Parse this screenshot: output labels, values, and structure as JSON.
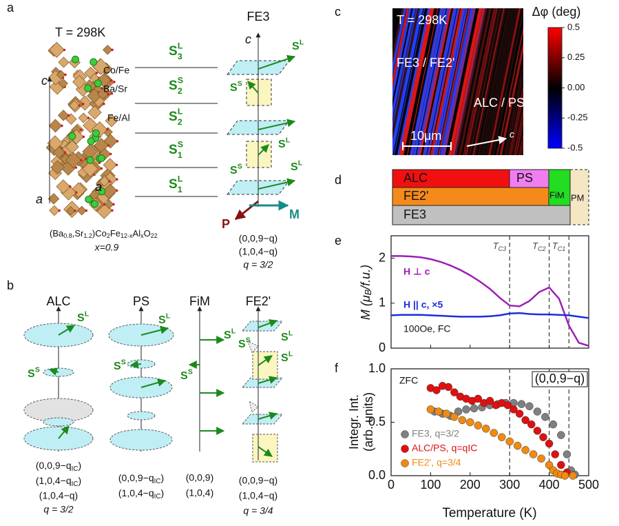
{
  "panels": {
    "a": {
      "label": "a",
      "temperature": "T = 298K",
      "sites": [
        "Co/Fe",
        "Ba/Sr",
        "Fe/Al"
      ],
      "axes": [
        "c",
        "a",
        "a"
      ],
      "formula": [
        {
          "text": "(Ba",
          "sub": "0.8"
        },
        {
          "text": ",Sr",
          "sub": "1.2"
        },
        {
          "text": ")Co",
          "sub": "2"
        },
        {
          "text": "Fe",
          "sub": "12-x"
        },
        {
          "text": "Al",
          "sub": "x"
        },
        {
          "text": "O",
          "sub": "22"
        }
      ],
      "composition": "x=0.9",
      "layers": [
        {
          "base": "S",
          "sup": "L",
          "sub": "3"
        },
        {
          "base": "S",
          "sup": "S",
          "sub": "2"
        },
        {
          "base": "S",
          "sup": "L",
          "sub": "2"
        },
        {
          "base": "S",
          "sup": "S",
          "sub": "1"
        },
        {
          "base": "S",
          "sup": "L",
          "sub": "1"
        }
      ],
      "fe3": {
        "title": "FE3",
        "axis": "c",
        "spins": [
          {
            "base": "S",
            "sup": "L"
          },
          {
            "base": "S",
            "sup": "S"
          },
          {
            "base": "S",
            "sup": "L"
          },
          {
            "base": "S",
            "sup": "S"
          },
          {
            "base": "S",
            "sup": "L"
          }
        ],
        "polarization": "P",
        "magnetization": "M",
        "wavevectors": [
          "(0,0,9−q)",
          "(1,0,4−q)"
        ],
        "q": "q = 3/2"
      }
    },
    "b": {
      "label": "b",
      "columns": [
        {
          "title": "ALC",
          "spins": [
            {
              "base": "S",
              "sup": "L"
            },
            {
              "base": "S",
              "sup": "S"
            }
          ],
          "wavevectors": [
            {
              "main": "(0,0,9−q",
              "sub": "IC",
              "end": ")"
            },
            {
              "main": "(1,0,4−q",
              "sub": "IC",
              "end": ")"
            },
            "(1,0,4−q)"
          ],
          "q": "q = 3/2"
        },
        {
          "title": "PS",
          "spins": [
            {
              "base": "S",
              "sup": "L"
            },
            {
              "base": "S",
              "sup": "S"
            }
          ],
          "wavevectors": [
            {
              "main": "(0,0,9−q",
              "sub": "IC",
              "end": ")"
            },
            {
              "main": "(1,0,4−q",
              "sub": "IC",
              "end": ")"
            }
          ]
        },
        {
          "title": "FiM",
          "spins": [
            {
              "base": "S",
              "sup": "L"
            },
            {
              "base": "S",
              "sup": "S"
            }
          ],
          "wavevectors": [
            "(0,0,9)",
            "(1,0,4)"
          ]
        },
        {
          "title": "FE2'",
          "spins": [
            {
              "base": "S",
              "sup": "S"
            },
            {
              "base": "S",
              "sup": "L"
            },
            {
              "base": "S",
              "sup": "L"
            }
          ],
          "wavevectors": [
            "(0,0,9−q)",
            "(1,0,4−q)"
          ],
          "q": "q = 3/4"
        }
      ]
    },
    "c": {
      "label": "c",
      "temperature": "T = 298K",
      "regions": [
        "FE3 / FE2'",
        "ALC / PS"
      ],
      "scale_bar": "10μm",
      "axis": "c",
      "colorbar": {
        "title": "Δφ (deg)",
        "lim": [
          -0.5,
          0.5
        ],
        "ticks": [
          0.5,
          0.25,
          {
            "value": 0,
            "label": "0.00"
          },
          -0.25,
          -0.5
        ]
      }
    },
    "d": {
      "label": "d",
      "phases": [
        "ALC",
        "PS",
        "FiM",
        "FE2'",
        "FE3",
        "PM"
      ]
    }
  },
  "chart_data": [
    {
      "type": "line",
      "panel_label": "e",
      "ylabel": {
        "main": "M (μ",
        "sub": "B",
        "end": "/f.u.)"
      },
      "xlim": [
        0,
        500
      ],
      "ylim": [
        0,
        2.5
      ],
      "xticks": [
        0,
        100,
        200,
        300,
        400,
        500
      ],
      "yticks": [
        0,
        1,
        2
      ],
      "transitions": [
        {
          "value": 300,
          "label": "T",
          "sub": "C3"
        },
        {
          "value": 400,
          "label": "T",
          "sub": "C2"
        },
        {
          "value": 450,
          "label": "T",
          "sub": "C1"
        }
      ],
      "annotation": "100Oe, FC",
      "x": [
        0,
        25,
        50,
        75,
        100,
        125,
        150,
        175,
        200,
        225,
        250,
        275,
        300,
        325,
        350,
        375,
        400,
        425,
        450,
        475,
        500
      ],
      "series": [
        {
          "name": "H ⊥ c",
          "color": "#9b1fb5",
          "values": [
            2.05,
            2.05,
            2.04,
            2.02,
            1.98,
            1.92,
            1.84,
            1.74,
            1.62,
            1.48,
            1.32,
            1.12,
            0.95,
            0.93,
            1.05,
            1.25,
            1.35,
            1.1,
            0.5,
            0.12,
            0.05
          ]
        },
        {
          "name": "H || c, ×5",
          "color": "#1a2ee0",
          "values": [
            0.73,
            0.74,
            0.74,
            0.74,
            0.73,
            0.72,
            0.71,
            0.7,
            0.7,
            0.7,
            0.71,
            0.73,
            0.77,
            0.78,
            0.76,
            0.75,
            0.75,
            0.74,
            0.73,
            0.7,
            0.67
          ]
        }
      ]
    },
    {
      "type": "scatter",
      "panel_label": "f",
      "xlabel": "Temperature (K)",
      "ylabel": [
        "Integr. Int.",
        "(arb. units)"
      ],
      "xlim": [
        0,
        500
      ],
      "ylim": [
        0,
        1
      ],
      "xticks": [
        0,
        100,
        200,
        300,
        400,
        500
      ],
      "yticks": [
        {
          "value": 0,
          "label": "0.0"
        },
        0.5,
        {
          "value": 1,
          "label": "1.0"
        }
      ],
      "transitions": [
        300,
        400,
        450
      ],
      "annotations": [
        "ZFC",
        "(0,0,9−q)"
      ],
      "series": [
        {
          "name": "FE3, q=3/2",
          "color": "#808080",
          "x": [
            110,
            130,
            150,
            170,
            190,
            210,
            230,
            250,
            270,
            290,
            310,
            330,
            350,
            370,
            390,
            410,
            430,
            445,
            455,
            465
          ],
          "values": [
            0.6,
            0.58,
            0.56,
            0.6,
            0.62,
            0.63,
            0.64,
            0.66,
            0.67,
            0.68,
            0.68,
            0.67,
            0.65,
            0.6,
            0.55,
            0.48,
            0.38,
            0.2,
            0.05,
            0.01
          ]
        },
        {
          "name": "ALC/PS, q=qIC",
          "color": "#e01010",
          "x": [
            100,
            115,
            130,
            145,
            160,
            175,
            190,
            205,
            220,
            235,
            250,
            265,
            280,
            295,
            310,
            325,
            340,
            355,
            370,
            385,
            400,
            415,
            430,
            445
          ],
          "values": [
            0.82,
            0.8,
            0.84,
            0.83,
            0.78,
            0.74,
            0.72,
            0.7,
            0.72,
            0.68,
            0.7,
            0.66,
            0.68,
            0.66,
            0.62,
            0.58,
            0.52,
            0.48,
            0.42,
            0.36,
            0.3,
            0.2,
            0.1,
            0.03
          ]
        },
        {
          "name": "FE2', q=3/4",
          "color": "#f08a10",
          "x": [
            100,
            120,
            140,
            160,
            180,
            200,
            220,
            240,
            260,
            280,
            300,
            320,
            340,
            360,
            380,
            400,
            410,
            420,
            430,
            440,
            460
          ],
          "values": [
            0.62,
            0.6,
            0.58,
            0.55,
            0.52,
            0.5,
            0.47,
            0.44,
            0.4,
            0.36,
            0.32,
            0.28,
            0.24,
            0.2,
            0.16,
            0.1,
            0.05,
            0.02,
            0.01,
            0,
            0
          ]
        }
      ]
    }
  ]
}
